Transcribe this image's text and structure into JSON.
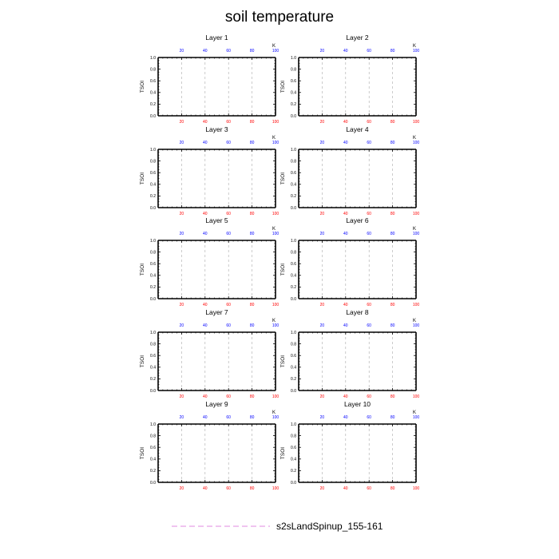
{
  "chart_data": {
    "type": "line",
    "title": "soil temperature",
    "ylabel": "TSOI",
    "top_axis_unit": "K",
    "x_ticks": [
      "20",
      "40",
      "60",
      "80",
      "100"
    ],
    "x_tick_values": [
      20,
      40,
      60,
      80,
      100
    ],
    "xlim": [
      0,
      100
    ],
    "y_ticks": [
      "0.0",
      "0.2",
      "0.4",
      "0.6",
      "0.8",
      "1.0"
    ],
    "y_tick_values": [
      0,
      0.2,
      0.4,
      0.6,
      0.8,
      1.0
    ],
    "ylim": [
      0,
      1
    ],
    "grid": "vertical dashed at x ticks",
    "legend_position": "bottom-center",
    "colors": {
      "top_ticks": "#0000ff",
      "bottom_ticks": "#ff0000",
      "series": "#e8a0e8",
      "grid": "#aaaaaa"
    },
    "series": [
      {
        "name": "s2sLandSpinup_155-161",
        "values": []
      }
    ],
    "panels": [
      {
        "title": "Layer 1"
      },
      {
        "title": "Layer 2"
      },
      {
        "title": "Layer 3"
      },
      {
        "title": "Layer 4"
      },
      {
        "title": "Layer 5"
      },
      {
        "title": "Layer 6"
      },
      {
        "title": "Layer 7"
      },
      {
        "title": "Layer 8"
      },
      {
        "title": "Layer 9"
      },
      {
        "title": "Layer 10"
      }
    ]
  }
}
